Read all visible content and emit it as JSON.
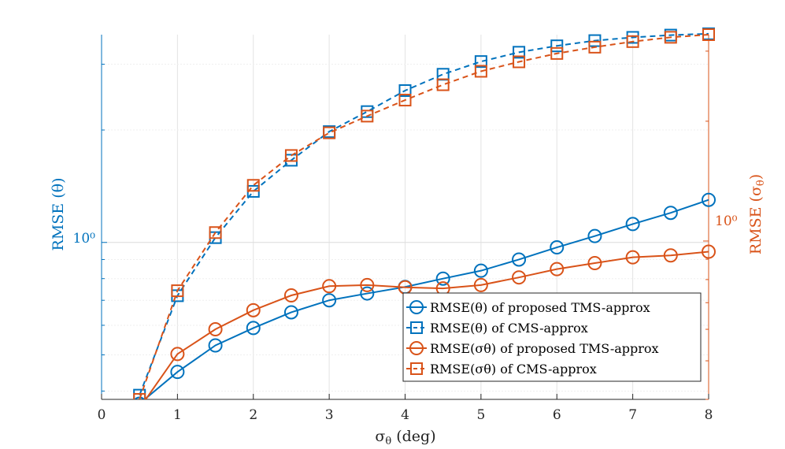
{
  "chart_data": {
    "type": "line",
    "xlabel": "σθ (deg)",
    "ylabel_left": "RMSE (θ)",
    "ylabel_right": "RMSE (σθ)",
    "xlim": [
      0,
      8
    ],
    "xticks": [
      0,
      1,
      2,
      3,
      4,
      5,
      6,
      7,
      8
    ],
    "xtick_labels": [
      "0",
      "1",
      "2",
      "3",
      "4",
      "5",
      "6",
      "7",
      "8"
    ],
    "yscale_left": "log",
    "yscale_right": "log",
    "ylim_left": [
      0.38,
      3.6
    ],
    "ylim_right": [
      0.4,
      3.3
    ],
    "ytick_left_label": "10⁰",
    "ytick_right_label": "10⁰",
    "grid": true,
    "legend_position": "lower-right",
    "colors": {
      "blue": "#0072BD",
      "orange": "#D95319",
      "right_axis": "#D95319"
    },
    "x": [
      0.5,
      1,
      1.5,
      2,
      2.5,
      3,
      3.5,
      4,
      4.5,
      5,
      5.5,
      6,
      6.5,
      7,
      7.5,
      8
    ],
    "series": [
      {
        "name": "RMSE(θ) of proposed TMS-approx",
        "axis": "left",
        "color": "#0072BD",
        "marker": "circle",
        "linestyle": "solid",
        "values": [
          0.37,
          0.45,
          0.53,
          0.59,
          0.65,
          0.7,
          0.73,
          0.76,
          0.8,
          0.84,
          0.9,
          0.97,
          1.04,
          1.12,
          1.2,
          1.3
        ]
      },
      {
        "name": "RMSE(θ) of CMS-approx",
        "axis": "left",
        "color": "#0072BD",
        "marker": "square",
        "linestyle": "dashed",
        "values": [
          0.39,
          0.72,
          1.03,
          1.37,
          1.66,
          1.98,
          2.24,
          2.55,
          2.82,
          3.05,
          3.23,
          3.36,
          3.47,
          3.54,
          3.59,
          3.62
        ]
      },
      {
        "name": "RMSE(σθ) of proposed TMS-approx",
        "axis": "right",
        "color": "#D95319",
        "marker": "circle",
        "linestyle": "solid",
        "values": [
          0.38,
          0.52,
          0.6,
          0.67,
          0.73,
          0.77,
          0.775,
          0.765,
          0.76,
          0.775,
          0.81,
          0.85,
          0.88,
          0.91,
          0.92,
          0.94
        ]
      },
      {
        "name": "RMSE(σθ) of CMS-approx",
        "axis": "right",
        "color": "#D95319",
        "marker": "square",
        "linestyle": "dashed",
        "values": [
          0.4,
          0.75,
          1.05,
          1.38,
          1.64,
          1.87,
          2.06,
          2.26,
          2.47,
          2.67,
          2.82,
          2.96,
          3.07,
          3.17,
          3.25,
          3.3
        ]
      }
    ]
  }
}
